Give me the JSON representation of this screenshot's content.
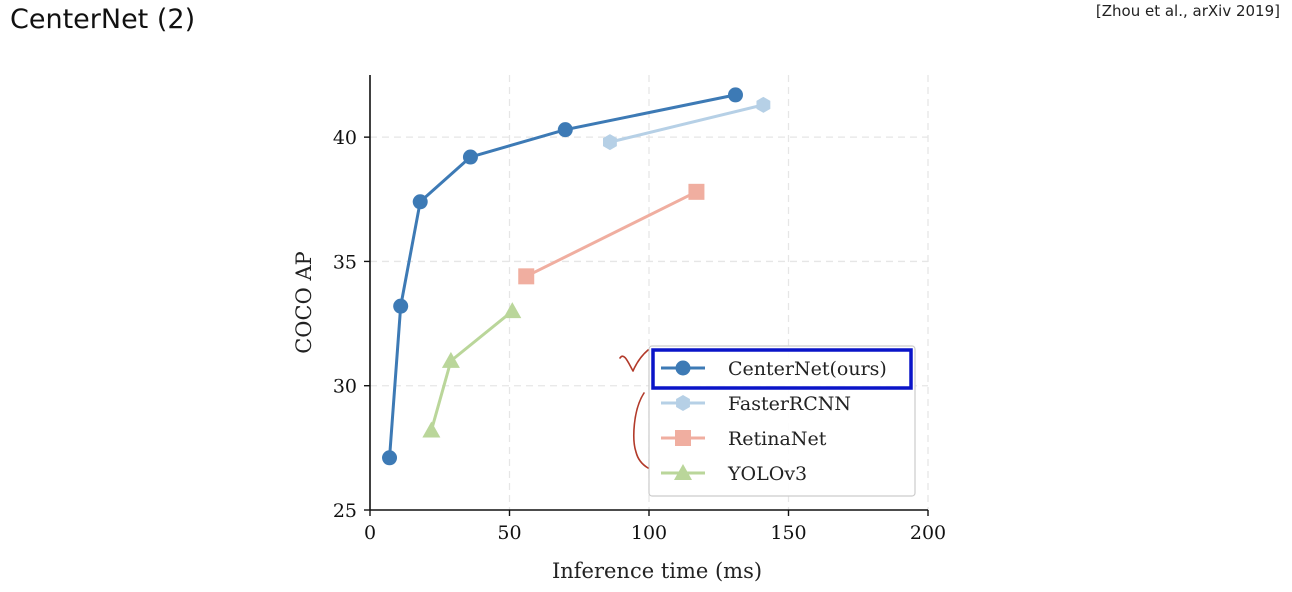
{
  "slide": {
    "title": "CenterNet (2)",
    "citation": "[Zhou et al., arXiv 2019]"
  },
  "colors": {
    "centernet": "#3d7ab5",
    "fasterrcnn": "#b6d0e6",
    "retinanet": "#f0aea0",
    "yolov3": "#bad69a",
    "highlight_box": "#0a14c8",
    "annotation_ink": "#b23a2a"
  },
  "chart_data": {
    "type": "line",
    "xlabel": "Inference time (ms)",
    "ylabel": "COCO AP",
    "xlim": [
      0,
      200
    ],
    "ylim": [
      25,
      42.5
    ],
    "xticks": [
      0,
      50,
      100,
      150,
      200
    ],
    "yticks": [
      25,
      30,
      35,
      40
    ],
    "grid": true,
    "legend_position": "lower-right",
    "highlighted_series": "CenterNet(ours)",
    "series": [
      {
        "name": "CenterNet(ours)",
        "marker": "circle",
        "points": [
          [
            7,
            27.1
          ],
          [
            11,
            33.2
          ],
          [
            18,
            37.4
          ],
          [
            36,
            39.2
          ],
          [
            70,
            40.3
          ],
          [
            131,
            41.7
          ]
        ]
      },
      {
        "name": "FasterRCNN",
        "marker": "hexagon",
        "points": [
          [
            86,
            39.8
          ],
          [
            141,
            41.3
          ]
        ]
      },
      {
        "name": "RetinaNet",
        "marker": "square",
        "points": [
          [
            56,
            34.4
          ],
          [
            117,
            37.8
          ]
        ]
      },
      {
        "name": "YOLOv3",
        "marker": "triangle",
        "points": [
          [
            22,
            28.2
          ],
          [
            29,
            31.0
          ],
          [
            51,
            33.0
          ]
        ]
      }
    ]
  }
}
